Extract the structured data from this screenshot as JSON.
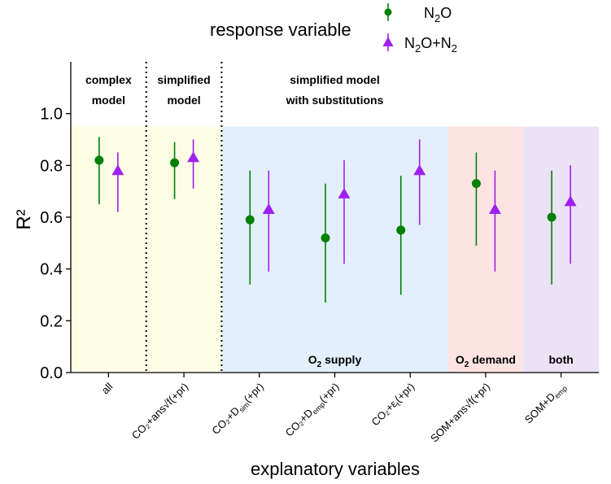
{
  "chart_data": {
    "type": "scatter",
    "subtype": "point-range",
    "legend": {
      "title": "response variable",
      "placement": "top",
      "entries": [
        {
          "name": "N₂O",
          "shape": "circle",
          "color": "#008000"
        },
        {
          "name": "N₂O+N₂",
          "shape": "triangle",
          "color": "#a020f0"
        }
      ]
    },
    "xlabel": "explanatory variables",
    "ylabel": "R²",
    "ylim": [
      0,
      1.2
    ],
    "yticks": [
      0.0,
      0.2,
      0.4,
      0.6,
      0.8,
      1.0
    ],
    "ytick_labels": [
      "0.0",
      "0.2",
      "0.4",
      "0.6",
      "0.8",
      "1.0"
    ],
    "grid": false,
    "categories": [
      "all",
      "CO₂+ans√f(+pr)",
      "CO₂+D_sim(+pr)",
      "CO₂+D_emp(+pr)",
      "CO₂+ε_t(+pr)",
      "SOM+ans√f(+pr)",
      "SOM+D_emp"
    ],
    "category_labels": [
      {
        "main": "all"
      },
      {
        "main": "CO₂+ans√f(+pr)"
      },
      {
        "pre": "CO₂+D",
        "sub": "sim",
        "post": "(+pr)"
      },
      {
        "pre": "CO₂+D",
        "sub": "emp",
        "post": "(+pr)"
      },
      {
        "pre": "CO₂+ε",
        "sub": "t",
        "post": "(+pr)"
      },
      {
        "main": "SOM+ans√f(+pr)"
      },
      {
        "pre": "SOM+D",
        "sub": "emp",
        "post": ""
      }
    ],
    "series": [
      {
        "name": "N₂O",
        "color": "#008000",
        "marker": "circle",
        "values": [
          0.82,
          0.81,
          0.59,
          0.52,
          0.55,
          0.73,
          0.6
        ],
        "lower": [
          0.65,
          0.67,
          0.34,
          0.27,
          0.3,
          0.49,
          0.34
        ],
        "upper": [
          0.91,
          0.89,
          0.78,
          0.73,
          0.76,
          0.85,
          0.78
        ]
      },
      {
        "name": "N₂O+N₂",
        "color": "#a020f0",
        "marker": "triangle",
        "values": [
          0.78,
          0.83,
          0.63,
          0.69,
          0.78,
          0.63,
          0.66
        ],
        "lower": [
          0.62,
          0.71,
          0.39,
          0.42,
          0.57,
          0.39,
          0.42
        ],
        "upper": [
          0.85,
          0.9,
          0.78,
          0.82,
          0.9,
          0.78,
          0.8
        ]
      }
    ],
    "regions": [
      {
        "from_index": 0,
        "to_index": 1,
        "ymax": 0.95,
        "color": "#fdfde6",
        "label": ""
      },
      {
        "from_index": 2,
        "to_index": 4,
        "ymax": 0.95,
        "color": "#e3effc",
        "label": "O₂ supply"
      },
      {
        "from_index": 5,
        "to_index": 5,
        "ymax": 0.95,
        "color": "#fde4e2",
        "label": "O₂ demand"
      },
      {
        "from_index": 6,
        "to_index": 6,
        "ymax": 0.95,
        "color": "#ece2f6",
        "label": "both"
      }
    ],
    "model_groups": [
      {
        "line1": "complex",
        "line2": "model"
      },
      {
        "line1": "simplified",
        "line2": "model"
      },
      {
        "line1": "simplified model",
        "line2": "with substitutions"
      }
    ],
    "dividers_after_index": [
      0,
      1
    ]
  }
}
